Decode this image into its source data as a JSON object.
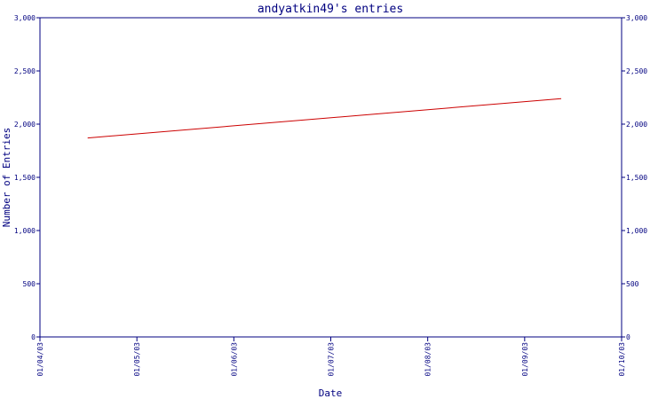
{
  "chart_data": {
    "type": "line",
    "title": "andyatkin49's entries",
    "xlabel": "Date",
    "ylabel": "Number of Entries",
    "x_ticks": [
      "01/04/03",
      "01/05/03",
      "01/06/03",
      "01/07/03",
      "01/08/03",
      "01/09/03",
      "01/10/03"
    ],
    "y_ticks": [
      "0",
      "500",
      "1,000",
      "1,500",
      "2,000",
      "2,500",
      "3,000"
    ],
    "ylim": [
      0,
      3000
    ],
    "y_axis_right": true,
    "grid": false,
    "series": [
      {
        "color": "#cc0000",
        "points": [
          {
            "x": "2003-04-16",
            "y": 1870
          },
          {
            "x": "2003-09-12",
            "y": 2240
          }
        ]
      }
    ]
  },
  "colors": {
    "axis": "#000080",
    "text": "#000080",
    "line": "#cc0000"
  }
}
